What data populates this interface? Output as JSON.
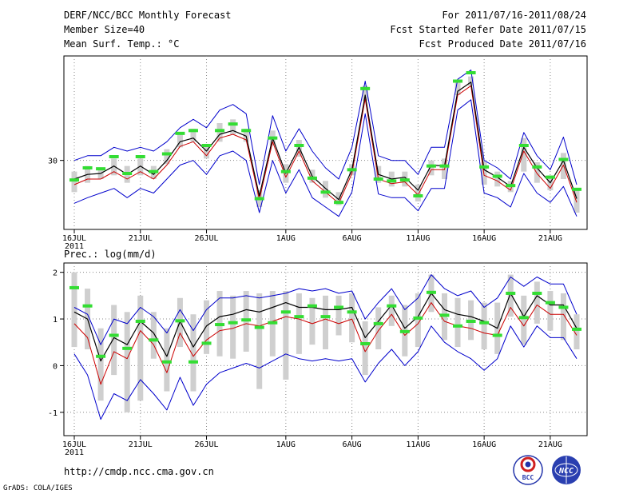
{
  "header": {
    "left": [
      "DERF/NCC/BCC Monthly Forecast",
      "Member Size=40",
      "Mean Surf. Temp.: °C"
    ],
    "right": [
      "For 2011/07/16-2011/08/24",
      "Fcst Started Refer Date 2011/07/15",
      "Fcst Produced Date 2011/07/16"
    ]
  },
  "footer": {
    "url": "http://cmdp.ncc.cma.gov.cn",
    "credit": "GrADS: COLA/IGES"
  },
  "logos": {
    "bcc": "BCC",
    "ncc": "NCC"
  },
  "colors": {
    "envelope": "#0000cc",
    "mean": "#000000",
    "median": "#cc0000",
    "spread_bar": "#cfcfcf",
    "observed": "#33dd33",
    "grid": "#888888"
  },
  "chart_data": [
    {
      "type": "line",
      "title": "Mean Surf. Temp.: °C",
      "x_labels": [
        "16JUL",
        "21JUL",
        "26JUL",
        "1AUG",
        "6AUG",
        "11AUG",
        "16AUG",
        "21AUG"
      ],
      "x_label_days": [
        0,
        5,
        10,
        16,
        21,
        26,
        31,
        36
      ],
      "x_year": "2011",
      "yticks": [
        30
      ],
      "ytick_labels": [
        "30"
      ],
      "ylim": [
        22.6,
        41.2
      ],
      "series": [
        {
          "name": "upper",
          "values": [
            30.0,
            30.5,
            30.5,
            31.4,
            31.0,
            31.4,
            31.0,
            32.0,
            33.5,
            34.4,
            33.5,
            35.4,
            36.0,
            35.0,
            27.4,
            34.8,
            31.0,
            33.4,
            31.0,
            29.2,
            28.0,
            31.4,
            38.5,
            30.5,
            30.0,
            30.0,
            28.5,
            31.4,
            31.4,
            38.7,
            39.7,
            30.0,
            29.2,
            28.0,
            33.0,
            30.5,
            29.0,
            32.5,
            27.4
          ]
        },
        {
          "name": "mean",
          "values": [
            28.0,
            28.5,
            28.6,
            29.4,
            28.5,
            29.4,
            28.5,
            30.0,
            32.0,
            32.4,
            31.0,
            32.8,
            33.2,
            32.6,
            26.2,
            32.4,
            28.6,
            31.4,
            28.3,
            27.0,
            25.8,
            29.0,
            37.0,
            28.5,
            28.0,
            28.2,
            26.8,
            29.5,
            29.4,
            37.4,
            38.4,
            29.0,
            28.2,
            27.2,
            31.4,
            29.2,
            27.6,
            30.0,
            25.9
          ]
        },
        {
          "name": "median",
          "values": [
            27.4,
            28.0,
            28.0,
            28.8,
            28.0,
            28.8,
            28.0,
            29.5,
            31.5,
            32.0,
            30.5,
            32.4,
            32.8,
            32.2,
            25.8,
            32.0,
            28.2,
            31.0,
            27.8,
            26.6,
            25.4,
            28.6,
            36.6,
            28.0,
            27.5,
            27.7,
            26.3,
            29.0,
            29.0,
            37.0,
            38.0,
            28.4,
            27.8,
            26.8,
            31.0,
            28.6,
            27.0,
            29.5,
            25.5
          ]
        },
        {
          "name": "lower",
          "values": [
            25.4,
            26.0,
            26.5,
            27.0,
            26.0,
            27.0,
            26.5,
            28.0,
            29.5,
            30.0,
            28.5,
            30.5,
            31.0,
            30.0,
            24.4,
            30.0,
            26.5,
            29.0,
            26.0,
            25.0,
            24.0,
            26.6,
            35.0,
            26.4,
            26.0,
            26.0,
            24.6,
            27.0,
            27.0,
            35.4,
            36.5,
            26.5,
            26.0,
            25.0,
            28.6,
            26.5,
            25.5,
            27.2,
            24.0
          ]
        },
        {
          "name": "observed",
          "values": [
            27.9,
            29.2,
            29.1,
            30.4,
            28.6,
            30.4,
            28.8,
            30.7,
            32.9,
            33.2,
            31.6,
            33.2,
            33.9,
            33.2,
            25.9,
            32.4,
            28.8,
            31.6,
            28.1,
            26.6,
            25.5,
            29.0,
            37.7,
            28.0,
            27.8,
            27.9,
            26.2,
            29.4,
            29.4,
            38.5,
            39.4,
            29.3,
            28.3,
            27.3,
            31.6,
            29.3,
            28.2,
            30.1,
            26.9
          ]
        },
        {
          "name": "spread_low",
          "values": [
            26.6,
            27.6,
            28.0,
            28.4,
            27.6,
            28.4,
            28.0,
            29.6,
            31.4,
            32.0,
            30.2,
            32.0,
            32.8,
            32.0,
            25.0,
            31.6,
            27.6,
            30.4,
            27.6,
            26.0,
            25.2,
            28.4,
            36.4,
            27.6,
            27.2,
            27.2,
            25.6,
            28.4,
            28.0,
            37.0,
            38.0,
            27.4,
            27.2,
            26.6,
            28.8,
            27.6,
            26.8,
            28.0,
            24.4
          ]
        },
        {
          "name": "spread_high",
          "values": [
            28.8,
            29.4,
            29.2,
            30.2,
            29.4,
            30.2,
            29.4,
            31.2,
            33.0,
            33.4,
            31.6,
            34.0,
            34.4,
            33.4,
            26.8,
            33.2,
            29.6,
            32.2,
            29.0,
            27.8,
            26.6,
            29.6,
            38.0,
            29.4,
            28.8,
            28.8,
            27.4,
            30.0,
            30.2,
            38.4,
            39.0,
            29.8,
            28.8,
            27.8,
            32.4,
            29.8,
            28.4,
            30.8,
            27.0
          ]
        }
      ]
    },
    {
      "type": "line",
      "title": "Prec.: log(mm/d)",
      "x_labels": [
        "16JUL",
        "21JUL",
        "26JUL",
        "1AUG",
        "6AUG",
        "11AUG",
        "16AUG",
        "21AUG"
      ],
      "x_label_days": [
        0,
        5,
        10,
        16,
        21,
        26,
        31,
        36
      ],
      "x_year": "2011",
      "yticks": [
        -1,
        0,
        1,
        2
      ],
      "ytick_labels": [
        "-1",
        "0",
        "1",
        "2"
      ],
      "ylim": [
        -1.5,
        2.2
      ],
      "series": [
        {
          "name": "upper",
          "values": [
            1.25,
            1.1,
            0.45,
            1.0,
            0.9,
            1.25,
            1.05,
            0.7,
            1.2,
            0.75,
            1.2,
            1.45,
            1.45,
            1.5,
            1.45,
            1.5,
            1.55,
            1.65,
            1.6,
            1.65,
            1.55,
            1.6,
            1.0,
            1.35,
            1.65,
            1.2,
            1.45,
            1.95,
            1.65,
            1.5,
            1.6,
            1.25,
            1.45,
            1.9,
            1.7,
            1.9,
            1.75,
            1.75,
            1.1
          ]
        },
        {
          "name": "mean",
          "values": [
            1.15,
            1.0,
            0.1,
            0.6,
            0.45,
            0.95,
            0.7,
            0.2,
            0.95,
            0.4,
            0.85,
            1.05,
            1.1,
            1.2,
            1.15,
            1.25,
            1.35,
            1.25,
            1.25,
            1.2,
            1.2,
            1.25,
            0.6,
            0.95,
            1.3,
            0.8,
            1.05,
            1.55,
            1.2,
            1.1,
            1.05,
            0.95,
            0.8,
            1.55,
            1.05,
            1.5,
            1.3,
            1.3,
            0.8
          ]
        },
        {
          "name": "median",
          "values": [
            0.9,
            0.6,
            -0.4,
            0.3,
            0.15,
            0.75,
            0.45,
            -0.15,
            0.7,
            0.2,
            0.55,
            0.75,
            0.8,
            0.9,
            0.85,
            0.95,
            1.05,
            1.0,
            0.9,
            1.0,
            0.9,
            1.0,
            0.3,
            0.75,
            1.1,
            0.65,
            0.9,
            1.35,
            0.95,
            0.85,
            0.8,
            0.7,
            0.65,
            1.25,
            0.85,
            1.3,
            1.1,
            1.1,
            0.65
          ]
        },
        {
          "name": "lower",
          "values": [
            0.25,
            -0.2,
            -1.15,
            -0.6,
            -0.75,
            -0.3,
            -0.6,
            -0.95,
            -0.25,
            -0.85,
            -0.4,
            -0.15,
            -0.05,
            0.05,
            -0.05,
            0.1,
            0.25,
            0.15,
            0.1,
            0.15,
            0.1,
            0.15,
            -0.35,
            0.05,
            0.35,
            0.0,
            0.3,
            0.85,
            0.5,
            0.3,
            0.15,
            -0.1,
            0.15,
            0.85,
            0.4,
            0.85,
            0.6,
            0.6,
            0.15
          ]
        },
        {
          "name": "observed",
          "values": [
            1.67,
            1.28,
            0.2,
            0.65,
            0.37,
            0.95,
            0.55,
            0.08,
            0.96,
            0.08,
            0.48,
            0.88,
            0.92,
            0.98,
            0.82,
            0.92,
            1.15,
            1.05,
            1.28,
            1.05,
            1.25,
            1.15,
            0.47,
            0.9,
            1.28,
            0.73,
            1.02,
            1.57,
            1.08,
            0.85,
            0.95,
            0.92,
            0.65,
            1.55,
            1.03,
            1.55,
            1.35,
            1.25,
            0.78
          ]
        },
        {
          "name": "spread_low",
          "values": [
            0.4,
            0.35,
            -0.75,
            -0.2,
            -1.0,
            -0.75,
            0.15,
            -0.55,
            0.4,
            -0.55,
            0.25,
            0.2,
            0.15,
            0.3,
            -0.5,
            0.2,
            -0.3,
            0.25,
            0.45,
            0.35,
            0.65,
            0.5,
            -0.2,
            0.35,
            0.85,
            0.2,
            0.4,
            1.15,
            0.55,
            0.4,
            0.55,
            0.35,
            0.25,
            1.05,
            0.45,
            0.9,
            0.75,
            0.55,
            0.35
          ]
        },
        {
          "name": "spread_high",
          "values": [
            2.0,
            1.65,
            0.8,
            1.3,
            1.15,
            1.5,
            1.15,
            0.8,
            1.45,
            1.1,
            1.4,
            1.6,
            1.5,
            1.6,
            1.55,
            1.6,
            1.6,
            1.55,
            1.45,
            1.5,
            1.5,
            1.55,
            0.95,
            1.25,
            1.5,
            1.3,
            1.55,
            1.95,
            1.55,
            1.45,
            1.4,
            1.35,
            1.35,
            1.95,
            1.5,
            1.8,
            1.6,
            1.55,
            1.1
          ]
        }
      ]
    }
  ]
}
